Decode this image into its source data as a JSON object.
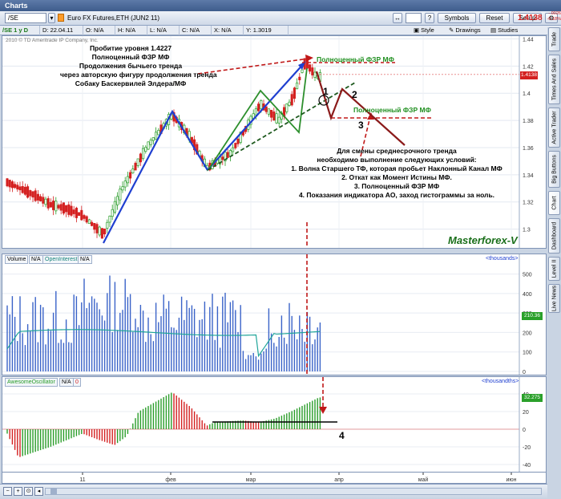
{
  "window": {
    "title": "Charts"
  },
  "toolbar": {
    "symbol": "/SE",
    "description": "Euro FX Futures,ETH (JUN2 11)",
    "search_value": "",
    "buttons": {
      "symbols": "Symbols",
      "reset": "Reset",
      "setup": "Setup",
      "style": "Style",
      "drawings": "Drawings",
      "studies": "Studies"
    },
    "last_price": "1.4138",
    "change_top": "-.0026",
    "change_bottom": "-0.18%"
  },
  "infobar": {
    "period": "/SE 1 y D",
    "date": "D: 22.04.11",
    "open": "O: N/A",
    "high": "H: N/A",
    "low": "L: N/A",
    "close": "C: N/A",
    "x": "X: N/A",
    "y": "Y: 1.3019"
  },
  "price_pane": {
    "copyright": "2010 © TD Ameritrade IP Company, Inc.",
    "y_ticks": [
      "1.44",
      "1.42",
      "1.4",
      "1.38",
      "1.36",
      "1.34",
      "1.32",
      "1.3"
    ],
    "price_tag": "1.4138",
    "watermark": "Masterforex-V",
    "annotation_top": [
      "Пробитие уровня 1.4227",
      "Полноценный ФЗР МФ",
      "Продолжения бычьего тренда",
      "через авторскую фигуру продолжения тренда",
      "Собаку Баскервилей Элдера/МФ"
    ],
    "label_fzr_top": "Полноценный ФЗР МФ",
    "label_fzr_mid": "Полноценный ФЗР МФ",
    "label_1": "1",
    "label_2": "2",
    "label_3": "3",
    "conditions": [
      "Для смены среднесрочного тренда",
      "необходимо выполнение следующих условий:",
      "1. Волна Старшего ТФ, которая пробьет Наклонный Канал МФ",
      "2. Откат как Момент Истины МФ.",
      "3. Полноценный ФЗР МФ",
      "4. Показания индикатора АО, заход гистограммы за ноль."
    ]
  },
  "volume_pane": {
    "legend": [
      "Volume",
      "N/A",
      "OpenInterest",
      "N/A"
    ],
    "units": "<thousands>",
    "y_ticks": [
      "500",
      "400",
      "300",
      "200",
      "100",
      "0"
    ],
    "oi_tag": "210.36"
  },
  "ao_pane": {
    "legend": [
      "AwesomeOscillator",
      "N/A",
      "0"
    ],
    "units": "<thousandths>",
    "y_ticks": [
      "40",
      "20",
      "0",
      "-20",
      "-40"
    ],
    "ao_tag": "32.275",
    "label_4": "4"
  },
  "x_axis": {
    "ticks": [
      "11",
      "фев",
      "мар",
      "апр",
      "май",
      "июн"
    ]
  },
  "right_tabs": [
    "Trade",
    "Times And Sales",
    "Active Trader",
    "Big Buttons",
    "Chart",
    "Dashboard",
    "Level II",
    "Live News"
  ],
  "colors": {
    "up": "#2a9d2a",
    "down": "#d42020",
    "trend_blue": "#1f3fd0",
    "dashed_green": "#1f5a1f",
    "dashed_red": "#c01818",
    "maroon": "#8b1a1a",
    "volume": "#3a63c8",
    "open_interest": "#21a59a",
    "label_green": "#1f8f1f"
  }
}
